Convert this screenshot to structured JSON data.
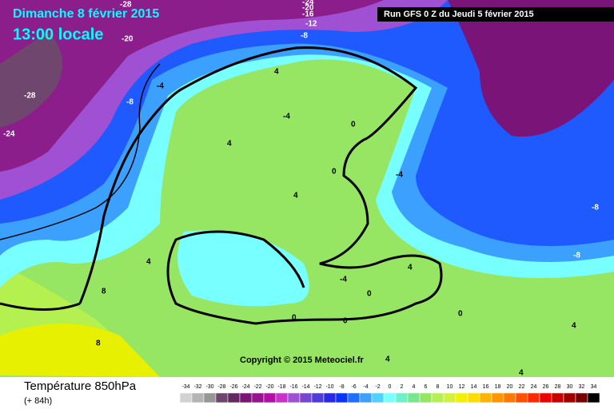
{
  "header": {
    "date": "Dimanche 8 février 2015",
    "time": "13:00 locale",
    "run": "Run GFS 0 Z du Jeudi 5 février 2015"
  },
  "copyright": "Copyright © 2015 Meteociel.fr",
  "footer": {
    "title": "Température 850hPa",
    "lead": "(+ 84h)"
  },
  "contour_labels": [
    -28,
    -24,
    -20,
    -28,
    -24,
    -20,
    -16,
    -12,
    -8,
    -4,
    -8,
    4,
    -4,
    0,
    4,
    0,
    -4,
    4,
    -8,
    -8,
    4,
    4,
    -4,
    0,
    8,
    0,
    0,
    0,
    8,
    4,
    4,
    4
  ],
  "scale": {
    "values": [
      -34,
      -32,
      -30,
      -28,
      -26,
      -24,
      -22,
      -20,
      -18,
      -16,
      -14,
      -12,
      -10,
      -8,
      -6,
      -4,
      -2,
      0,
      2,
      4,
      6,
      8,
      10,
      12,
      14,
      16,
      18,
      20,
      22,
      24,
      26,
      28,
      30,
      32,
      34
    ],
    "colors": [
      "#d2d2d2",
      "#b4b4b4",
      "#969696",
      "#6e466e",
      "#642864",
      "#7a1478",
      "#96148c",
      "#b40fa5",
      "#c832c8",
      "#a050d2",
      "#7846d2",
      "#503cdc",
      "#2828e6",
      "#0a32ff",
      "#1e6eff",
      "#3ca0ff",
      "#50d2ff",
      "#78ffff",
      "#6ef0c8",
      "#78e68c",
      "#96e664",
      "#b4f050",
      "#d2f03c",
      "#f0f000",
      "#ffdc00",
      "#ffb400",
      "#ff9600",
      "#ff7800",
      "#ff5000",
      "#ff2800",
      "#f00000",
      "#c80000",
      "#a00000",
      "#780000",
      "#000000"
    ]
  }
}
